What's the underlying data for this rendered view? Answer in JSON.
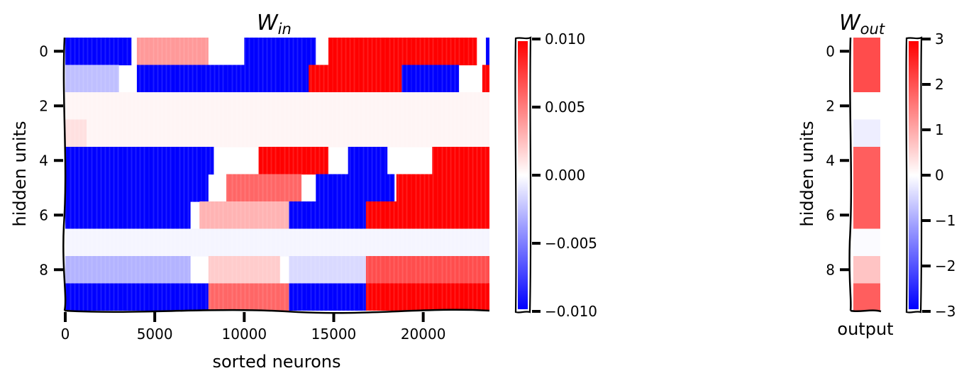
{
  "chart_data": [
    {
      "type": "heatmap",
      "title": "W",
      "title_subscript": "in",
      "xlabel": "sorted neurons",
      "ylabel": "hidden units",
      "xlim": [
        0,
        23700
      ],
      "ylim": [
        9.5,
        -0.5
      ],
      "x_ticks": [
        0,
        5000,
        10000,
        15000,
        20000
      ],
      "y_ticks": [
        0,
        2,
        4,
        6,
        8
      ],
      "colormap": "bwr",
      "colors": {
        "low": "#0000ff",
        "mid": "#ffffff",
        "high": "#ff0000"
      },
      "value_range": [
        -0.01,
        0.01
      ],
      "colorbar_ticks": [
        "0.010",
        "0.005",
        "0.000",
        "−0.005",
        "−0.010"
      ],
      "rows": [
        {
          "unit": 0,
          "segments": [
            [
              0,
              3700,
              -0.01
            ],
            [
              4000,
              8000,
              0.004
            ],
            [
              10000,
              14000,
              -0.01
            ],
            [
              14700,
              23000,
              0.01
            ],
            [
              23500,
              23700,
              -0.01
            ]
          ]
        },
        {
          "unit": 1,
          "segments": [
            [
              0,
              3000,
              -0.0025
            ],
            [
              4000,
              14000,
              -0.01
            ],
            [
              13600,
              18800,
              0.01
            ],
            [
              18800,
              22000,
              -0.01
            ],
            [
              23300,
              23700,
              0.01
            ]
          ]
        },
        {
          "unit": 2,
          "segments": [
            [
              0,
              23700,
              0.0004
            ]
          ]
        },
        {
          "unit": 3,
          "segments": [
            [
              0,
              1200,
              0.0012
            ],
            [
              1200,
              23700,
              0.0004
            ]
          ]
        },
        {
          "unit": 4,
          "segments": [
            [
              0,
              8300,
              -0.01
            ],
            [
              10800,
              14700,
              0.01
            ],
            [
              15800,
              18000,
              -0.01
            ],
            [
              20500,
              23700,
              0.01
            ]
          ]
        },
        {
          "unit": 5,
          "segments": [
            [
              0,
              8000,
              -0.01
            ],
            [
              9000,
              13200,
              0.006
            ],
            [
              14000,
              18400,
              -0.01
            ],
            [
              18500,
              23700,
              0.01
            ]
          ]
        },
        {
          "unit": 6,
          "segments": [
            [
              0,
              7000,
              -0.01
            ],
            [
              7500,
              12500,
              0.003
            ],
            [
              12500,
              16800,
              -0.01
            ],
            [
              16800,
              23700,
              0.01
            ]
          ]
        },
        {
          "unit": 7,
          "segments": [
            [
              0,
              23700,
              -0.0004
            ]
          ]
        },
        {
          "unit": 8,
          "segments": [
            [
              0,
              7000,
              -0.003
            ],
            [
              8000,
              12000,
              0.002
            ],
            [
              12500,
              16800,
              -0.0015
            ],
            [
              16800,
              23700,
              0.007
            ]
          ]
        },
        {
          "unit": 9,
          "segments": [
            [
              0,
              8000,
              -0.01
            ],
            [
              8000,
              12500,
              0.006
            ],
            [
              12500,
              16800,
              -0.01
            ],
            [
              16800,
              23700,
              0.01
            ]
          ]
        }
      ]
    },
    {
      "type": "heatmap",
      "title": "W",
      "title_subscript": "out",
      "xlabel": "output",
      "ylabel": "hidden units",
      "y_ticks": [
        0,
        2,
        4,
        6,
        8
      ],
      "colormap": "bwr",
      "colors": {
        "low": "#0000ff",
        "mid": "#ffffff",
        "high": "#ff0000"
      },
      "value_range": [
        -3,
        3
      ],
      "colorbar_ticks": [
        "3",
        "2",
        "1",
        "0",
        "−1",
        "−2",
        "−3"
      ],
      "values": [
        2.1,
        2.1,
        0.0,
        -0.2,
        1.9,
        1.9,
        1.9,
        -0.05,
        0.7,
        1.9
      ]
    }
  ]
}
